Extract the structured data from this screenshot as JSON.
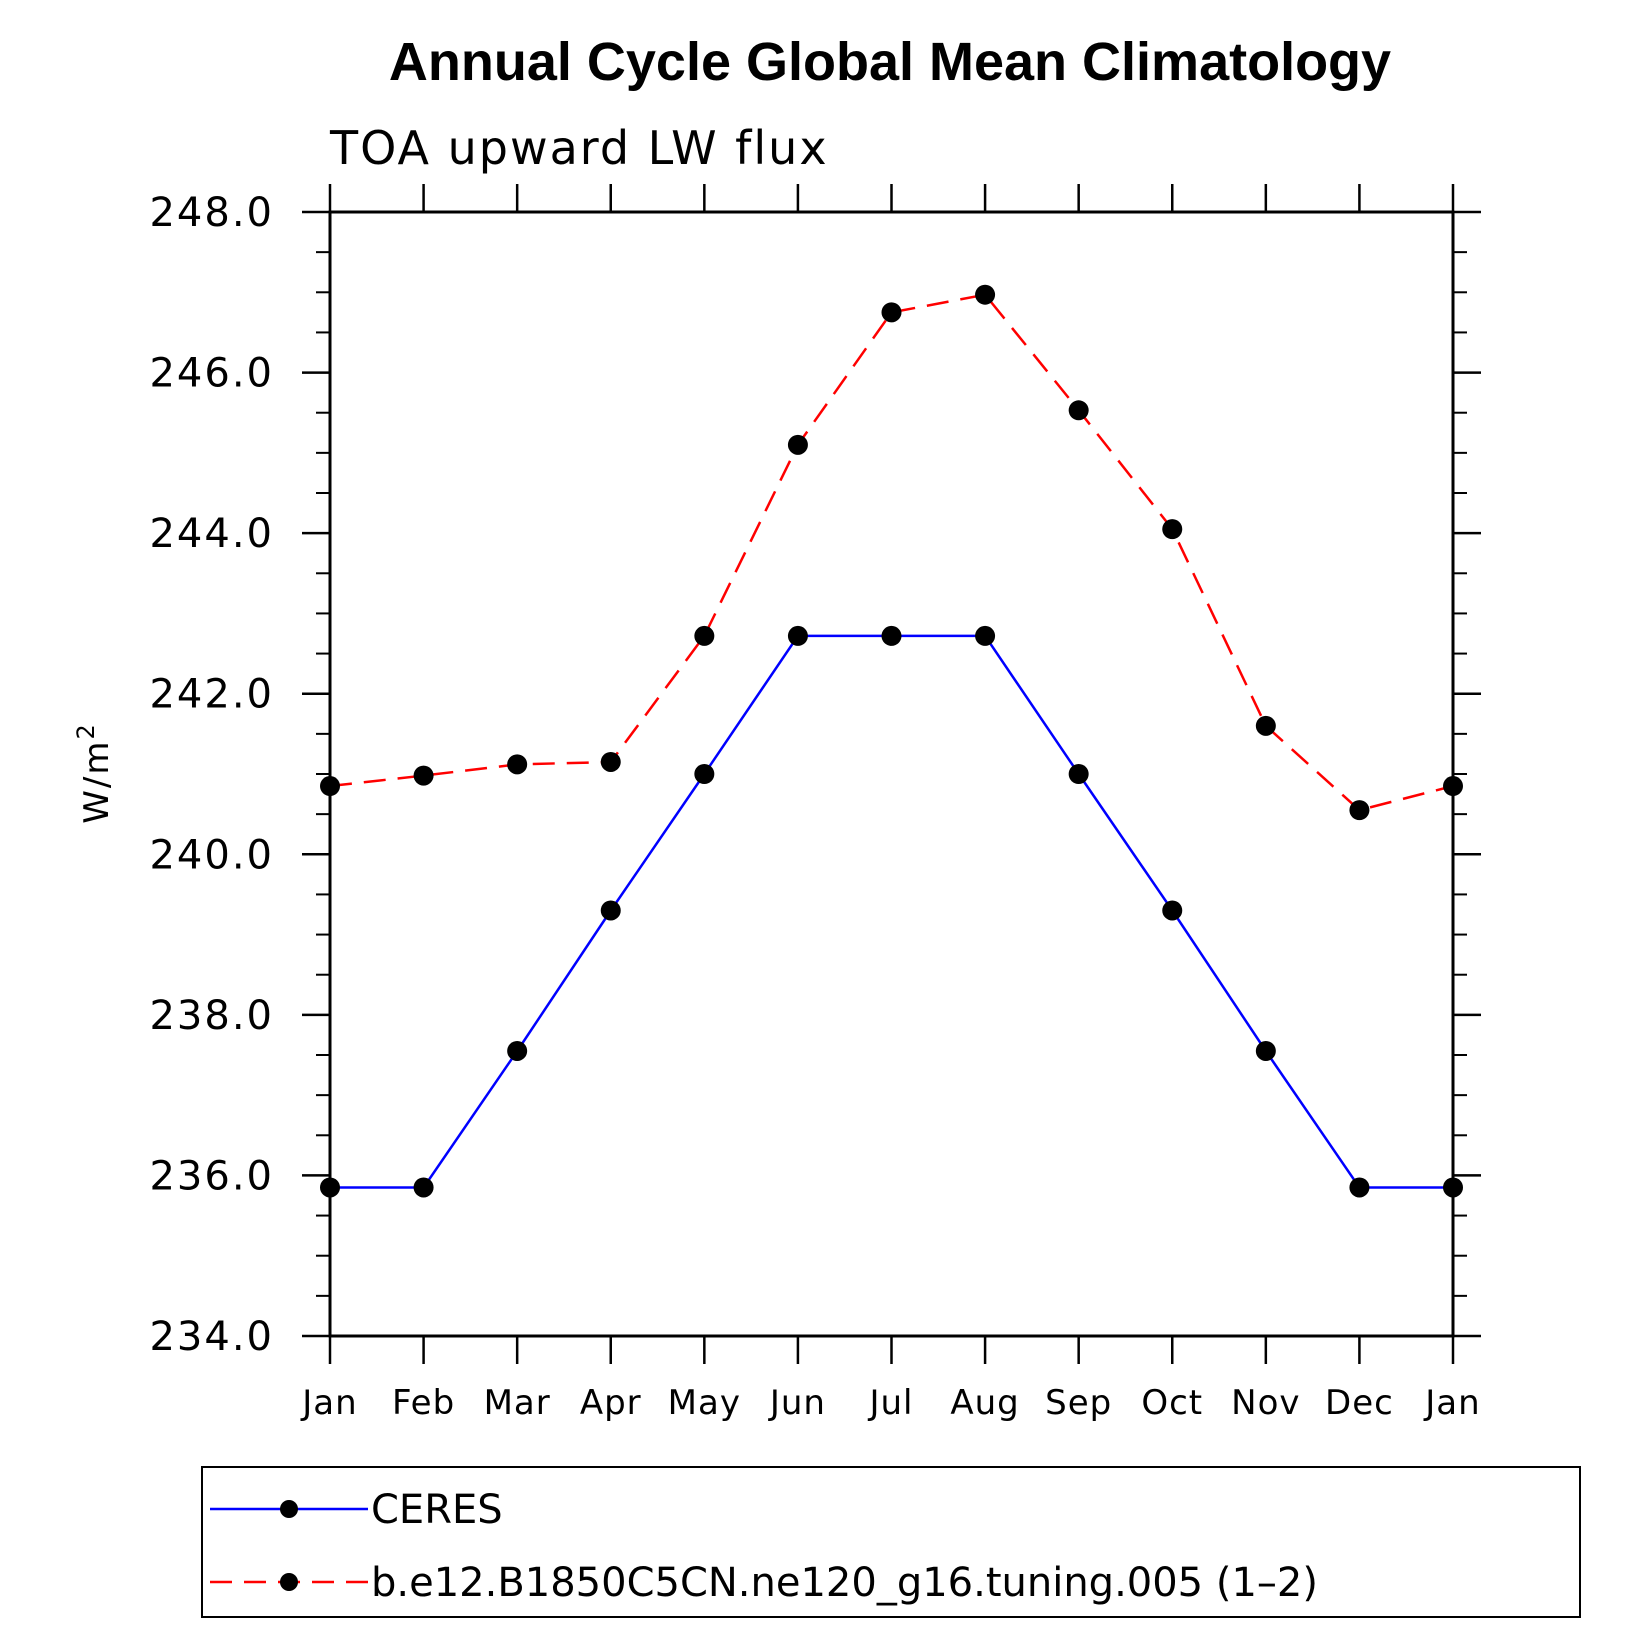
{
  "chart_data": {
    "type": "line",
    "title": "Annual Cycle Global Mean Climatology",
    "subtitle": "TOA upward LW flux",
    "ylabel": "W/m",
    "ylabel_superscript": "2",
    "xlabel": "",
    "ylim": [
      234.0,
      248.0
    ],
    "yticks": [
      234.0,
      236.0,
      238.0,
      240.0,
      242.0,
      244.0,
      246.0,
      248.0
    ],
    "ytick_labels": [
      "234.0",
      "236.0",
      "238.0",
      "240.0",
      "242.0",
      "244.0",
      "246.0",
      "248.0"
    ],
    "categories": [
      "Jan",
      "Feb",
      "Mar",
      "Apr",
      "May",
      "Jun",
      "Jul",
      "Aug",
      "Sep",
      "Oct",
      "Nov",
      "Dec",
      "Jan"
    ],
    "grid": false,
    "legend_position": "bottom",
    "series": [
      {
        "name": "CERES",
        "color": "#0000ff",
        "dash": "solid",
        "marker": "filled-circle",
        "values": [
          235.85,
          235.85,
          237.55,
          239.3,
          241.0,
          242.72,
          242.72,
          242.72,
          241.0,
          239.3,
          237.55,
          235.85,
          235.85
        ]
      },
      {
        "name": "b.e12.B1850C5CN.ne120_g16.tuning.005 (1–2)",
        "color": "#ff0000",
        "dash": "dashed",
        "marker": "filled-circle",
        "values": [
          240.85,
          240.98,
          241.12,
          241.15,
          242.72,
          245.1,
          246.75,
          246.97,
          245.53,
          244.05,
          241.6,
          240.55,
          240.85
        ]
      }
    ]
  }
}
